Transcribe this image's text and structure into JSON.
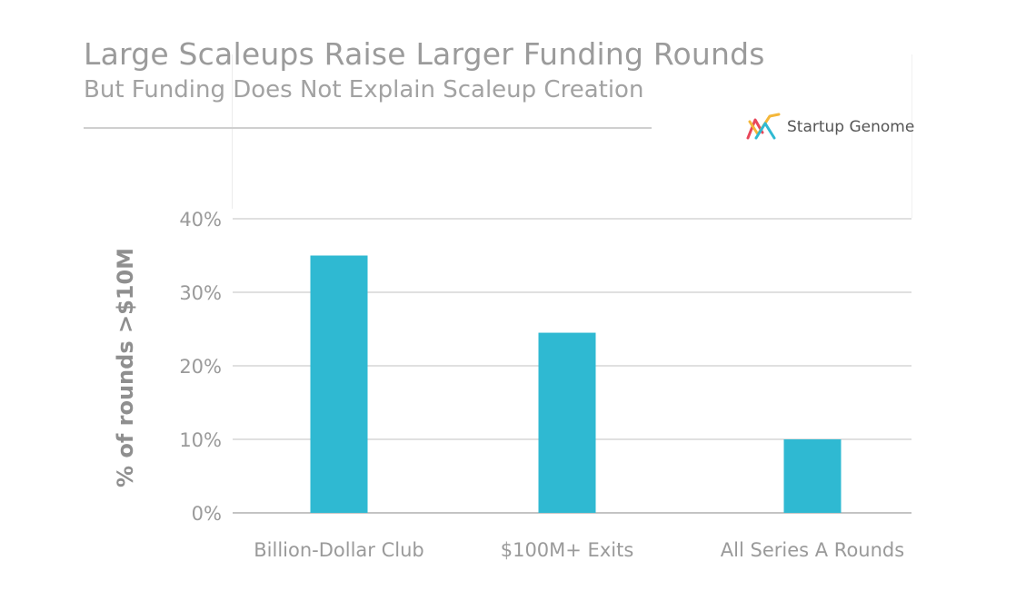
{
  "chart_data": {
    "type": "bar",
    "title": "Large Scaleups Raise Larger Funding Rounds",
    "subtitle": "But Funding Does Not Explain Scaleup Creation",
    "ylabel": "% of rounds >$10M",
    "xlabel": "",
    "categories": [
      "Billion-Dollar Club",
      "$100M+ Exits",
      "All Series A Rounds"
    ],
    "values": [
      35,
      24.5,
      10
    ],
    "ylim": [
      0,
      40
    ],
    "yticks": [
      0,
      10,
      20,
      30,
      40
    ],
    "ytick_labels": [
      "0%",
      "10%",
      "20%",
      "30%",
      "40%"
    ],
    "grid": true,
    "bar_color": "#2fb9d2"
  },
  "brand": {
    "name": "Startup Genome",
    "logo_colors": [
      "#e8475a",
      "#f4b73a",
      "#2fb9d2"
    ]
  }
}
